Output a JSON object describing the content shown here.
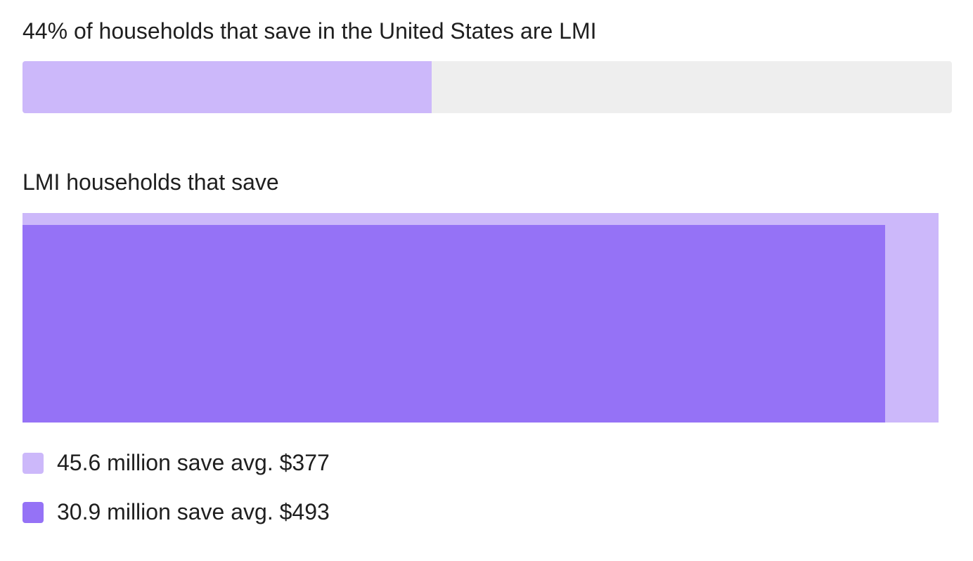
{
  "chart_data": [
    {
      "type": "bar",
      "title": "44% of households that save in the United States are LMI",
      "value": 44,
      "max": 100,
      "colors": {
        "fill": "#ccb8fa",
        "track": "#eeeeee"
      }
    },
    {
      "type": "area",
      "title": "LMI households that save",
      "series": [
        {
          "label": "45.6 million save avg. $377",
          "households_millions": 45.6,
          "avg_savings": 377,
          "color": "#ccb8fa"
        },
        {
          "label": "30.9 million save avg. $493",
          "households_millions": 30.9,
          "avg_savings": 493,
          "color": "#9572f6"
        }
      ]
    }
  ]
}
